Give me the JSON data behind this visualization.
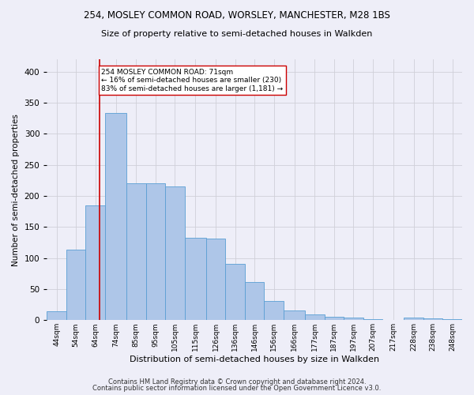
{
  "title1": "254, MOSLEY COMMON ROAD, WORSLEY, MANCHESTER, M28 1BS",
  "title2": "Size of property relative to semi-detached houses in Walkden",
  "xlabel": "Distribution of semi-detached houses by size in Walkden",
  "ylabel": "Number of semi-detached properties",
  "footer1": "Contains HM Land Registry data © Crown copyright and database right 2024.",
  "footer2": "Contains public sector information licensed under the Open Government Licence v3.0.",
  "annotation_title": "254 MOSLEY COMMON ROAD: 71sqm",
  "annotation_line1": "← 16% of semi-detached houses are smaller (230)",
  "annotation_line2": "83% of semi-detached houses are larger (1,181) →",
  "property_size": 71,
  "bar_categories": [
    "44sqm",
    "54sqm",
    "64sqm",
    "74sqm",
    "85sqm",
    "95sqm",
    "105sqm",
    "115sqm",
    "126sqm",
    "136sqm",
    "146sqm",
    "156sqm",
    "166sqm",
    "177sqm",
    "187sqm",
    "197sqm",
    "207sqm",
    "217sqm",
    "228sqm",
    "238sqm",
    "248sqm"
  ],
  "bar_left_edges": [
    44,
    54,
    64,
    74,
    85,
    95,
    105,
    115,
    126,
    136,
    146,
    156,
    166,
    177,
    187,
    197,
    207,
    217,
    228,
    238,
    248
  ],
  "bar_widths": [
    10,
    10,
    10,
    11,
    10,
    10,
    10,
    11,
    10,
    10,
    10,
    10,
    11,
    10,
    10,
    10,
    10,
    11,
    10,
    10,
    10
  ],
  "bar_heights": [
    14,
    114,
    185,
    333,
    220,
    220,
    215,
    132,
    131,
    91,
    61,
    31,
    15,
    9,
    5,
    4,
    2,
    1,
    4,
    3,
    2
  ],
  "bar_color": "#aec6e8",
  "bar_edge_color": "#5a9fd4",
  "vline_x": 71,
  "vline_color": "#cc0000",
  "annotation_box_color": "#cc0000",
  "annotation_bg": "#ffffff",
  "grid_color": "#d0d0d8",
  "ylim": [
    0,
    420
  ],
  "yticks": [
    0,
    50,
    100,
    150,
    200,
    250,
    300,
    350,
    400
  ],
  "xlim_left": 44,
  "xlim_right": 258,
  "background_color": "#eeeef8"
}
